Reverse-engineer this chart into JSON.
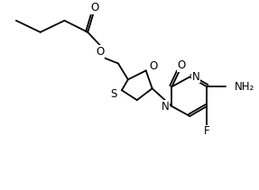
{
  "background_color": "#ffffff",
  "line_color": "#000000",
  "line_width": 1.3,
  "font_size": 8.5,
  "figsize": [
    2.87,
    2.11
  ],
  "dpi": 100,
  "atoms": {
    "O_carbonyl": "O",
    "O_ester": "O",
    "S_ring": "S",
    "O_ring": "O",
    "N1_pyr": "N",
    "N3_pyr": "N",
    "O_keto": "O",
    "NH2": "NH₂",
    "F": "F"
  }
}
